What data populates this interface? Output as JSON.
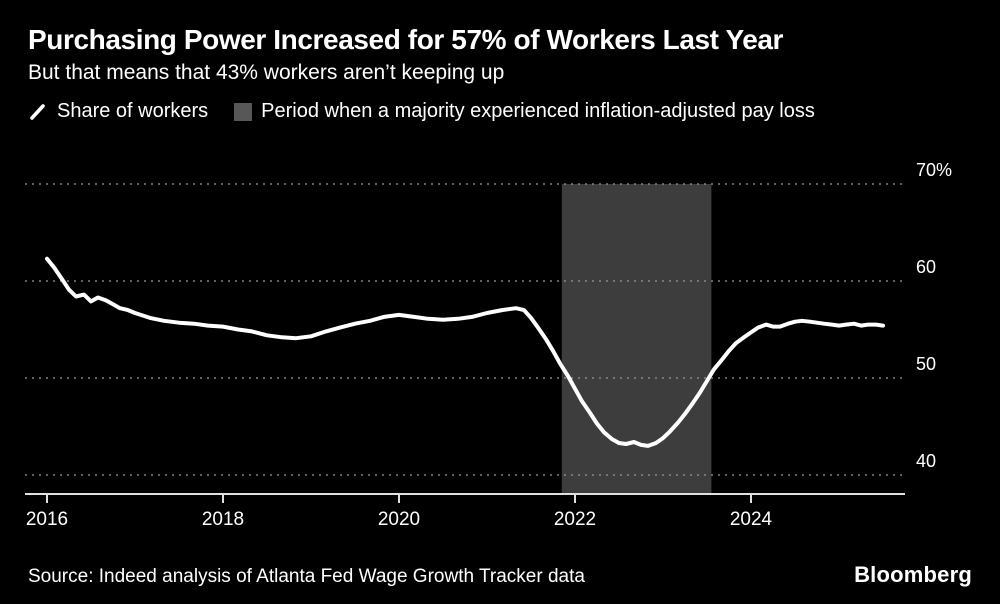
{
  "header": {
    "title": "Purchasing Power Increased for 57% of Workers Last Year",
    "subtitle": "But that means that 43% workers aren’t keeping up"
  },
  "legend": {
    "series_label": "Share of workers",
    "band_label": "Period when a majority experienced inflation-adjusted pay loss"
  },
  "footer": {
    "source": "Source: Indeed analysis of Atlanta Fed Wage Growth Tracker data",
    "brand": "Bloomberg"
  },
  "colors": {
    "background": "#000000",
    "line": "#ffffff",
    "band": "#3d3d3d",
    "legend_swatch": "#575757",
    "grid": "#999999",
    "axis": "#e0e0e0",
    "text": "#ffffff"
  },
  "chart_data": {
    "type": "line",
    "title": "Purchasing Power Increased for 57% of Workers Last Year",
    "xlabel": "",
    "ylabel": "",
    "xlim": [
      2015.75,
      2025.75
    ],
    "ylim": [
      40,
      70
    ],
    "grid": "dotted-horizontal",
    "legend_position": "top",
    "y_ticks": [
      {
        "v": 70,
        "label": "70%"
      },
      {
        "v": 60,
        "label": "60"
      },
      {
        "v": 50,
        "label": "50"
      },
      {
        "v": 40,
        "label": "40"
      }
    ],
    "x_ticks": [
      {
        "v": 2016,
        "label": "2016"
      },
      {
        "v": 2018,
        "label": "2018"
      },
      {
        "v": 2020,
        "label": "2020"
      },
      {
        "v": 2022,
        "label": "2022"
      },
      {
        "v": 2024,
        "label": "2024"
      }
    ],
    "shaded_region": {
      "x_start": 2021.85,
      "x_end": 2023.55,
      "label": "Period when a majority experienced inflation-adjusted pay loss"
    },
    "series": [
      {
        "name": "Share of workers",
        "x": [
          2016.0,
          2016.08,
          2016.17,
          2016.25,
          2016.33,
          2016.42,
          2016.5,
          2016.58,
          2016.67,
          2016.75,
          2016.83,
          2016.92,
          2017.0,
          2017.17,
          2017.33,
          2017.5,
          2017.67,
          2017.83,
          2018.0,
          2018.17,
          2018.33,
          2018.5,
          2018.67,
          2018.83,
          2019.0,
          2019.17,
          2019.33,
          2019.5,
          2019.67,
          2019.83,
          2020.0,
          2020.17,
          2020.33,
          2020.5,
          2020.67,
          2020.83,
          2021.0,
          2021.17,
          2021.33,
          2021.42,
          2021.5,
          2021.58,
          2021.67,
          2021.75,
          2021.83,
          2021.92,
          2022.0,
          2022.08,
          2022.17,
          2022.25,
          2022.33,
          2022.42,
          2022.5,
          2022.58,
          2022.67,
          2022.75,
          2022.83,
          2022.92,
          2023.0,
          2023.08,
          2023.17,
          2023.25,
          2023.33,
          2023.42,
          2023.5,
          2023.58,
          2023.67,
          2023.75,
          2023.83,
          2023.92,
          2024.0,
          2024.08,
          2024.17,
          2024.25,
          2024.33,
          2024.42,
          2024.5,
          2024.58,
          2024.67,
          2024.75,
          2024.83,
          2024.92,
          2025.0,
          2025.08,
          2025.17,
          2025.25,
          2025.33,
          2025.42,
          2025.5
        ],
        "values": [
          62.3,
          61.4,
          60.2,
          59.1,
          58.4,
          58.6,
          57.9,
          58.3,
          58.0,
          57.6,
          57.2,
          57.0,
          56.7,
          56.2,
          55.9,
          55.7,
          55.6,
          55.4,
          55.3,
          55.0,
          54.8,
          54.4,
          54.2,
          54.1,
          54.3,
          54.8,
          55.2,
          55.6,
          55.9,
          56.3,
          56.5,
          56.3,
          56.1,
          56.0,
          56.1,
          56.3,
          56.7,
          57.0,
          57.2,
          57.0,
          56.2,
          55.2,
          54.0,
          52.8,
          51.5,
          50.2,
          48.9,
          47.6,
          46.4,
          45.3,
          44.4,
          43.7,
          43.3,
          43.2,
          43.4,
          43.1,
          43.0,
          43.3,
          43.8,
          44.5,
          45.4,
          46.3,
          47.3,
          48.5,
          49.7,
          50.9,
          51.9,
          52.8,
          53.6,
          54.2,
          54.7,
          55.2,
          55.5,
          55.3,
          55.3,
          55.6,
          55.8,
          55.9,
          55.8,
          55.7,
          55.6,
          55.5,
          55.4,
          55.5,
          55.6,
          55.4,
          55.5,
          55.5,
          55.4
        ]
      }
    ]
  }
}
